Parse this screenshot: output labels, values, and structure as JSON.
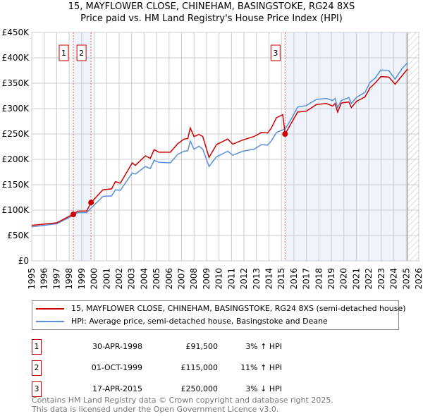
{
  "title_line1": "15, MAYFLOWER CLOSE, CHINEHAM, BASINGSTOKE, RG24 8XS",
  "title_line2": "Price paid vs. HM Land Registry's House Price Index (HPI)",
  "chart_data": {
    "type": "line",
    "title": "15, MAYFLOWER CLOSE, CHINEHAM, BASINGSTOKE, RG24 8XS — Price paid vs. HM Land Registry's House Price Index (HPI)",
    "xlim": [
      1995,
      2026
    ],
    "ylim": [
      0,
      450000
    ],
    "x_ticks": [
      "1995",
      "1996",
      "1997",
      "1998",
      "1999",
      "2000",
      "2001",
      "2002",
      "2003",
      "2004",
      "2005",
      "2006",
      "2007",
      "2008",
      "2009",
      "2010",
      "2011",
      "2012",
      "2013",
      "2014",
      "2015",
      "2016",
      "2017",
      "2018",
      "2019",
      "2020",
      "2021",
      "2022",
      "2023",
      "2024",
      "2025",
      "2026"
    ],
    "y_ticks": [
      {
        "v": 0,
        "l": "£0"
      },
      {
        "v": 50000,
        "l": "£50K"
      },
      {
        "v": 100000,
        "l": "£100K"
      },
      {
        "v": 150000,
        "l": "£150K"
      },
      {
        "v": 200000,
        "l": "£200K"
      },
      {
        "v": 250000,
        "l": "£250K"
      },
      {
        "v": 300000,
        "l": "£300K"
      },
      {
        "v": 350000,
        "l": "£350K"
      },
      {
        "v": 400000,
        "l": "£400K"
      },
      {
        "v": 450000,
        "l": "£450K"
      }
    ],
    "grid": true,
    "shaded_ranges": [
      [
        1998.33,
        1999.75
      ],
      [
        2015.29,
        2025.1
      ]
    ],
    "forecast_hatch_from": 2025.1,
    "series": [
      {
        "name": "15, MAYFLOWER CLOSE, CHINEHAM, BASINGSTOKE, RG24 8XS (semi-detached house)",
        "color": "#cc0000",
        "x": [
          1995.0,
          1997.0,
          1998.3,
          1998.7,
          1999.4,
          1999.76,
          2000.7,
          2001.4,
          2001.7,
          2002.1,
          2003.05,
          2003.3,
          2004.1,
          2004.5,
          2004.8,
          2005.2,
          2006.1,
          2006.7,
          2007.2,
          2007.5,
          2007.7,
          2008.0,
          2008.4,
          2008.7,
          2009.2,
          2009.8,
          2010.7,
          2011.1,
          2011.9,
          2012.8,
          2013.4,
          2013.9,
          2014.2,
          2014.6,
          2015.1,
          2015.3,
          2015.8,
          2016.3,
          2017.0,
          2017.8,
          2018.6,
          2019.1,
          2019.3,
          2019.5,
          2019.8,
          2020.4,
          2020.6,
          2021.0,
          2021.7,
          2022.1,
          2022.5,
          2022.96,
          2023.6,
          2024.1,
          2024.7,
          2025.1
        ],
        "y": [
          70,
          75,
          91.5,
          98,
          98,
          115,
          140,
          142,
          156,
          153,
          193,
          188,
          207,
          202,
          219,
          214,
          214,
          231,
          240,
          241,
          262,
          245,
          249,
          245,
          204,
          229,
          240,
          230,
          238,
          245,
          253,
          252,
          262,
          282,
          288,
          250,
          272,
          293,
          295,
          308,
          310,
          305,
          310,
          293,
          311,
          313,
          302,
          314,
          323,
          341,
          350,
          363,
          362,
          348,
          366,
          378
        ]
      },
      {
        "name": "HPI: Average price, semi-detached house, Basingstoke and Deane",
        "color": "#5b8fd6",
        "x": [
          1995.0,
          1997.0,
          1998.3,
          1998.7,
          1999.4,
          1999.76,
          2000.7,
          2001.4,
          2001.7,
          2002.1,
          2003.05,
          2003.3,
          2004.1,
          2004.5,
          2004.8,
          2005.2,
          2006.1,
          2006.7,
          2007.2,
          2007.5,
          2007.7,
          2008.0,
          2008.4,
          2008.7,
          2009.2,
          2009.8,
          2010.7,
          2011.1,
          2011.9,
          2012.8,
          2013.4,
          2013.9,
          2014.2,
          2014.6,
          2015.1,
          2015.3,
          2015.8,
          2016.3,
          2017.0,
          2017.8,
          2018.6,
          2019.1,
          2019.3,
          2019.5,
          2019.8,
          2020.4,
          2020.6,
          2021.0,
          2021.7,
          2022.1,
          2022.5,
          2022.96,
          2023.6,
          2024.1,
          2024.7,
          2025.1
        ],
        "y": [
          67,
          73,
          89,
          95,
          95,
          104,
          127,
          128,
          140,
          139,
          173,
          171,
          186,
          182,
          198,
          194,
          193,
          210,
          216,
          217,
          236,
          220,
          226,
          220,
          186,
          205,
          216,
          208,
          216,
          220,
          229,
          228,
          237,
          253,
          258,
          260,
          280,
          303,
          306,
          318,
          320,
          316,
          320,
          302,
          316,
          322,
          310,
          322,
          332,
          352,
          360,
          376,
          375,
          358,
          380,
          390
        ],
        "y_unit": "thousands GBP"
      }
    ],
    "sales": [
      {
        "label": "1",
        "x": 1998.33,
        "y": 91500
      },
      {
        "label": "2",
        "x": 1999.75,
        "y": 115000
      },
      {
        "label": "3",
        "x": 2015.29,
        "y": 250000
      }
    ]
  },
  "legend": {
    "property": "15, MAYFLOWER CLOSE, CHINEHAM, BASINGSTOKE, RG24 8XS (semi-detached house)",
    "hpi": "HPI: Average price, semi-detached house, Basingstoke and Deane"
  },
  "transactions": [
    {
      "num": "1",
      "date": "30-APR-1998",
      "price": "£91,500",
      "hpi": "3% ↑ HPI"
    },
    {
      "num": "2",
      "date": "01-OCT-1999",
      "price": "£115,000",
      "hpi": "11% ↑ HPI"
    },
    {
      "num": "3",
      "date": "17-APR-2015",
      "price": "£250,000",
      "hpi": "3% ↓ HPI"
    }
  ],
  "footer": {
    "line1": "Contains HM Land Registry data © Crown copyright and database right 2025.",
    "line2": "This data is licensed under the Open Government Licence v3.0."
  }
}
